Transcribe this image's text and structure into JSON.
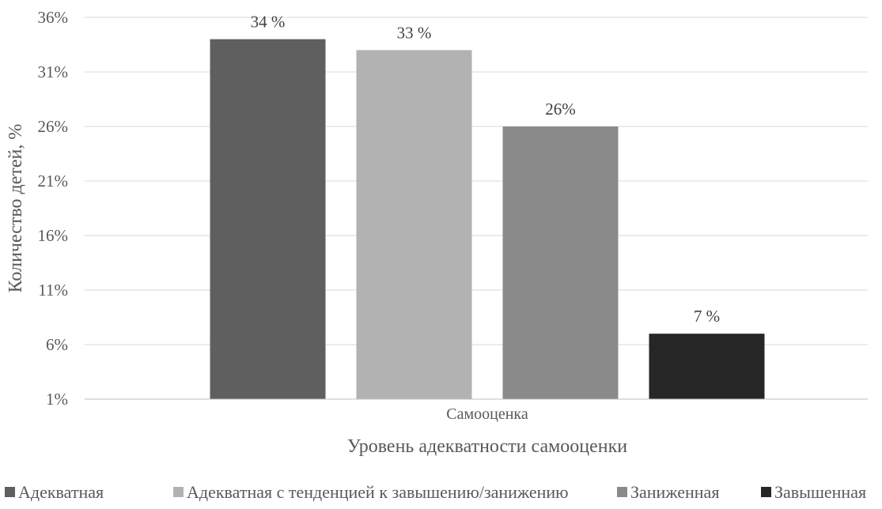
{
  "chart_data": {
    "type": "bar",
    "title": "",
    "xlabel": "Уровень адекватности самооценки",
    "ylabel": "Количество детей, %",
    "categories": [
      "Самооценка"
    ],
    "ylim": [
      1,
      36
    ],
    "yticks": [
      1,
      6,
      11,
      16,
      21,
      26,
      31,
      36
    ],
    "ytick_labels": [
      "1%",
      "6%",
      "11%",
      "16%",
      "21%",
      "26%",
      "31%",
      "36%"
    ],
    "grid": true,
    "legend_position": "bottom",
    "series": [
      {
        "name": "Адекватная",
        "values": [
          34
        ],
        "label": "34 %",
        "color": "#5f5f5f"
      },
      {
        "name": "Адекватная с тенденцией к завышению/занижению",
        "values": [
          33
        ],
        "label": "33 %",
        "color": "#b2b2b2"
      },
      {
        "name": "Заниженная",
        "values": [
          26
        ],
        "label": "26%",
        "color": "#8a8a8a"
      },
      {
        "name": "Завышенная",
        "values": [
          7
        ],
        "label": "7 %",
        "color": "#262626"
      }
    ]
  }
}
